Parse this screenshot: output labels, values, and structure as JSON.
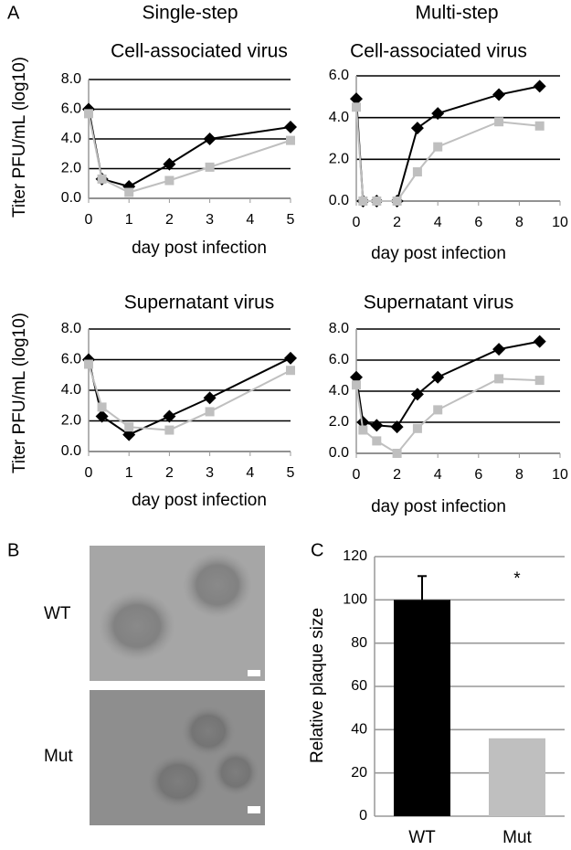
{
  "panel_labels": [
    "A",
    "B",
    "C"
  ],
  "column_headers": [
    "Single-step",
    "Multi-step"
  ],
  "image_labels": [
    "WT",
    "Mut"
  ],
  "chart_data": [
    {
      "type": "line",
      "title": "Cell-associated virus",
      "xlabel": "day post infection",
      "ylabel": "Titer PFU/mL (log10)",
      "x": [
        0,
        0.33,
        1,
        2,
        3,
        5
      ],
      "series": [
        {
          "color": "#000000",
          "marker": "diamond",
          "values": [
            6.0,
            1.3,
            0.8,
            2.3,
            4.0,
            4.8
          ]
        },
        {
          "color": "#bfbfbf",
          "marker": "square",
          "values": [
            5.7,
            1.3,
            0.4,
            1.2,
            2.1,
            3.9
          ]
        }
      ],
      "xlim": [
        0,
        5
      ],
      "xticks": [
        0,
        1,
        2,
        3,
        4,
        5
      ],
      "ylim": [
        0,
        8
      ],
      "yticks": [
        {
          "value": 0,
          "label": "0.0"
        },
        {
          "value": 2,
          "label": "2.0"
        },
        {
          "value": 4,
          "label": "4.0"
        },
        {
          "value": 6,
          "label": "6.0"
        },
        {
          "value": 8,
          "label": "8.0"
        }
      ],
      "grid": true
    },
    {
      "type": "line",
      "title": "Cell-associated virus",
      "xlabel": "day post infection",
      "x": [
        0,
        0.33,
        1,
        2,
        3,
        4,
        7,
        9
      ],
      "series": [
        {
          "color": "#000000",
          "marker": "diamond",
          "values": [
            4.9,
            0.0,
            0.0,
            0.0,
            3.5,
            4.2,
            5.1,
            5.5
          ]
        },
        {
          "color": "#bfbfbf",
          "marker": "square",
          "values": [
            4.5,
            0.0,
            0.0,
            0.0,
            1.4,
            2.6,
            3.8,
            3.6
          ]
        }
      ],
      "xlim": [
        0,
        10
      ],
      "xticks": [
        0,
        2,
        4,
        6,
        8,
        10
      ],
      "ylim": [
        0,
        6
      ],
      "yticks": [
        {
          "value": 0,
          "label": "0.0"
        },
        {
          "value": 2,
          "label": "2.0"
        },
        {
          "value": 4,
          "label": "4.0"
        },
        {
          "value": 6,
          "label": "6.0"
        }
      ],
      "grid": true
    },
    {
      "type": "line",
      "title": "Supernatant virus",
      "xlabel": "day post infection",
      "ylabel": "Titer PFU/mL (log10)",
      "x": [
        0,
        0.33,
        1,
        2,
        3,
        5
      ],
      "series": [
        {
          "color": "#000000",
          "marker": "diamond",
          "values": [
            6.0,
            2.3,
            1.1,
            2.3,
            3.5,
            6.1
          ]
        },
        {
          "color": "#bfbfbf",
          "marker": "square",
          "values": [
            5.7,
            2.9,
            1.6,
            1.4,
            2.6,
            5.3
          ]
        }
      ],
      "xlim": [
        0,
        5
      ],
      "xticks": [
        0,
        1,
        2,
        3,
        4,
        5
      ],
      "ylim": [
        0,
        8
      ],
      "yticks": [
        {
          "value": 0,
          "label": "0.0"
        },
        {
          "value": 2,
          "label": "2.0"
        },
        {
          "value": 4,
          "label": "4.0"
        },
        {
          "value": 6,
          "label": "6.0"
        },
        {
          "value": 8,
          "label": "8.0"
        }
      ],
      "grid": true
    },
    {
      "type": "line",
      "title": "Supernatant virus",
      "xlabel": "day post infection",
      "x": [
        0,
        0.33,
        1,
        2,
        3,
        4,
        7,
        9
      ],
      "series": [
        {
          "color": "#000000",
          "marker": "diamond",
          "values": [
            4.9,
            2.0,
            1.8,
            1.7,
            3.8,
            4.9,
            6.7,
            7.2
          ]
        },
        {
          "color": "#bfbfbf",
          "marker": "square",
          "values": [
            4.4,
            1.5,
            0.8,
            0.0,
            1.6,
            2.8,
            4.8,
            4.7
          ]
        }
      ],
      "xlim": [
        0,
        10
      ],
      "xticks": [
        0,
        2,
        4,
        6,
        8,
        10
      ],
      "ylim": [
        0,
        8
      ],
      "yticks": [
        {
          "value": 0,
          "label": "0.0"
        },
        {
          "value": 2,
          "label": "2.0"
        },
        {
          "value": 4,
          "label": "4.0"
        },
        {
          "value": 6,
          "label": "6.0"
        },
        {
          "value": 8,
          "label": "8.0"
        }
      ],
      "grid": true
    },
    {
      "type": "bar",
      "ylabel": "Relative plaque size",
      "categories": [
        "WT",
        "Mut"
      ],
      "values": [
        100,
        36
      ],
      "errors": [
        11,
        null
      ],
      "colors": [
        "#000000",
        "#bfbfbf"
      ],
      "annotations": [
        "*"
      ],
      "ylim": [
        0,
        120
      ],
      "yticks": [
        0,
        20,
        40,
        60,
        80,
        100,
        120
      ],
      "grid": true
    }
  ]
}
